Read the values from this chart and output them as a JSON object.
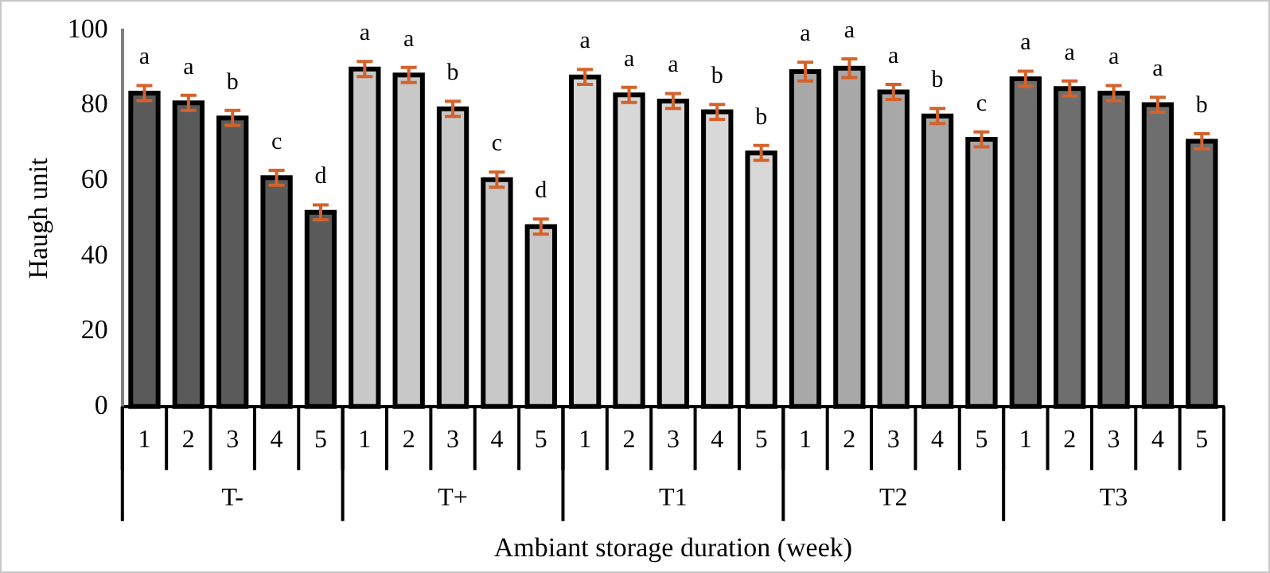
{
  "chart_data": {
    "type": "bar",
    "stacked": true,
    "xlabel": "Ambiant storage duration (week)",
    "ylabel": "Haugh unit",
    "categories": [
      "1",
      "2",
      "3",
      "4",
      "5",
      "1",
      "2",
      "3",
      "4",
      "5",
      "1",
      "2",
      "3",
      "4",
      "5",
      "1",
      "2",
      "3",
      "4",
      "5",
      "1",
      "2",
      "3",
      "4",
      "5"
    ],
    "ylim": [
      0,
      100
    ],
    "yticks": [
      0,
      20,
      40,
      60,
      80,
      100
    ],
    "grid": false,
    "legend": false,
    "series": [
      {
        "name": "T-",
        "color": "#5a5a5a",
        "values": [
          83.3,
          80.7,
          76.7,
          60.8,
          51.6,
          null,
          null,
          null,
          null,
          null,
          null,
          null,
          null,
          null,
          null,
          null,
          null,
          null,
          null,
          null,
          null,
          null,
          null,
          null,
          null
        ],
        "errors": [
          2,
          2,
          2,
          2,
          2,
          null,
          null,
          null,
          null,
          null,
          null,
          null,
          null,
          null,
          null,
          null,
          null,
          null,
          null,
          null,
          null,
          null,
          null,
          null,
          null
        ],
        "value_labels": [
          "a",
          "a",
          "b",
          "c",
          "d",
          null,
          null,
          null,
          null,
          null,
          null,
          null,
          null,
          null,
          null,
          null,
          null,
          null,
          null,
          null,
          null,
          null,
          null,
          null,
          null
        ]
      },
      {
        "name": "T+",
        "color": "#c8c8c8",
        "values": [
          null,
          null,
          null,
          null,
          null,
          89.7,
          88.1,
          79.1,
          60.3,
          47.8,
          null,
          null,
          null,
          null,
          null,
          null,
          null,
          null,
          null,
          null,
          null,
          null,
          null,
          null,
          null
        ],
        "errors": [
          null,
          null,
          null,
          null,
          null,
          2,
          2,
          2,
          2,
          2,
          null,
          null,
          null,
          null,
          null,
          null,
          null,
          null,
          null,
          null,
          null,
          null,
          null,
          null,
          null
        ],
        "value_labels": [
          null,
          null,
          null,
          null,
          null,
          "a",
          "a",
          "b",
          "c",
          "d",
          null,
          null,
          null,
          null,
          null,
          null,
          null,
          null,
          null,
          null,
          null,
          null,
          null,
          null,
          null
        ]
      },
      {
        "name": "T1",
        "color": "#d8d8d8",
        "values": [
          null,
          null,
          null,
          null,
          null,
          null,
          null,
          null,
          null,
          null,
          87.6,
          82.8,
          81.2,
          78.3,
          67.4,
          null,
          null,
          null,
          null,
          null,
          null,
          null,
          null,
          null,
          null
        ],
        "errors": [
          null,
          null,
          null,
          null,
          null,
          null,
          null,
          null,
          null,
          null,
          2,
          2,
          2,
          2,
          2,
          null,
          null,
          null,
          null,
          null,
          null,
          null,
          null,
          null,
          null
        ],
        "value_labels": [
          null,
          null,
          null,
          null,
          null,
          null,
          null,
          null,
          null,
          null,
          "a",
          "a",
          "a",
          "b",
          "b",
          null,
          null,
          null,
          null,
          null,
          null,
          null,
          null,
          null,
          null
        ]
      },
      {
        "name": "T2",
        "color": "#a8a8a8",
        "values": [
          null,
          null,
          null,
          null,
          null,
          null,
          null,
          null,
          null,
          null,
          null,
          null,
          null,
          null,
          null,
          89.0,
          89.9,
          83.6,
          77.2,
          71.0,
          null,
          null,
          null,
          null,
          null
        ],
        "errors": [
          null,
          null,
          null,
          null,
          null,
          null,
          null,
          null,
          null,
          null,
          null,
          null,
          null,
          null,
          null,
          2.5,
          2.5,
          2,
          2,
          2,
          null,
          null,
          null,
          null,
          null
        ],
        "value_labels": [
          null,
          null,
          null,
          null,
          null,
          null,
          null,
          null,
          null,
          null,
          null,
          null,
          null,
          null,
          null,
          "a",
          "a",
          "a",
          "b",
          "c",
          null,
          null,
          null,
          null,
          null
        ]
      },
      {
        "name": "T3",
        "color": "#6e6e6e",
        "values": [
          null,
          null,
          null,
          null,
          null,
          null,
          null,
          null,
          null,
          null,
          null,
          null,
          null,
          null,
          null,
          null,
          null,
          null,
          null,
          null,
          87.1,
          84.5,
          83.3,
          80.2,
          70.5
        ],
        "errors": [
          null,
          null,
          null,
          null,
          null,
          null,
          null,
          null,
          null,
          null,
          null,
          null,
          null,
          null,
          null,
          null,
          null,
          null,
          null,
          null,
          2,
          2,
          2,
          2,
          2
        ],
        "value_labels": [
          null,
          null,
          null,
          null,
          null,
          null,
          null,
          null,
          null,
          null,
          null,
          null,
          null,
          null,
          null,
          null,
          null,
          null,
          null,
          null,
          "a",
          "a",
          "a",
          "a",
          "b"
        ]
      }
    ]
  }
}
